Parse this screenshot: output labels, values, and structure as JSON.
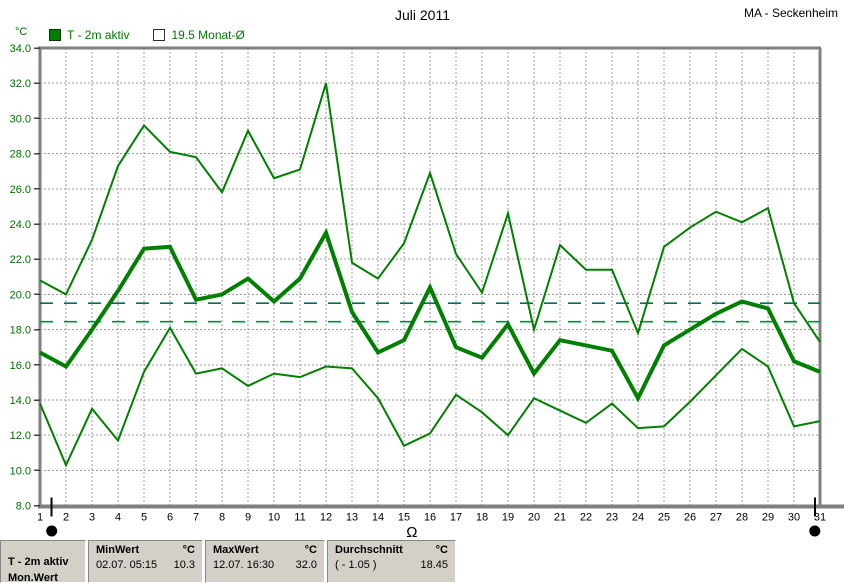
{
  "header": {
    "title": "Juli 2011",
    "station": "MA - Seckenheim"
  },
  "legend": {
    "unit_label": "°C",
    "series1_label": "T - 2m aktiv",
    "series2_label": "19.5 Monat-Ø"
  },
  "colors": {
    "series": "#008000",
    "grid": "#9c9c9c",
    "axis": "#808080",
    "ytick_text": "#007000",
    "xtick_text": "#000000"
  },
  "chart_data": {
    "type": "line",
    "title": "Juli 2011",
    "y_unit": "°C",
    "legend": [
      "T - 2m aktiv",
      "19.5 Monat-Ø"
    ],
    "x": [
      1,
      2,
      3,
      4,
      5,
      6,
      7,
      8,
      9,
      10,
      11,
      12,
      13,
      14,
      15,
      16,
      17,
      18,
      19,
      20,
      21,
      22,
      23,
      24,
      25,
      26,
      27,
      28,
      29,
      30,
      31
    ],
    "ylim": [
      8,
      34
    ],
    "ytick_step": 2,
    "grid": true,
    "series": [
      {
        "name": "daily-max",
        "width": 2,
        "values": [
          20.8,
          20.0,
          23.1,
          27.3,
          29.6,
          28.1,
          27.8,
          25.8,
          29.3,
          26.6,
          27.1,
          32.0,
          21.8,
          20.9,
          22.9,
          26.9,
          22.3,
          20.1,
          24.6,
          18.0,
          22.8,
          21.4,
          21.4,
          17.8,
          22.7,
          23.8,
          24.7,
          24.1,
          24.9,
          19.5,
          17.3
        ]
      },
      {
        "name": "daily-mean",
        "width": 4,
        "values": [
          16.7,
          15.9,
          18.0,
          20.2,
          22.6,
          22.7,
          19.7,
          20.0,
          20.9,
          19.6,
          20.9,
          23.5,
          19.0,
          16.7,
          17.4,
          20.4,
          17.0,
          16.4,
          18.3,
          15.5,
          17.4,
          17.1,
          16.8,
          14.1,
          17.1,
          18.0,
          18.9,
          19.6,
          19.2,
          16.2,
          15.6
        ]
      },
      {
        "name": "daily-min",
        "width": 2,
        "values": [
          13.8,
          10.3,
          13.5,
          11.7,
          15.6,
          18.1,
          15.5,
          15.8,
          14.8,
          15.5,
          15.3,
          15.9,
          15.8,
          14.1,
          11.4,
          12.1,
          14.3,
          13.3,
          12.0,
          14.1,
          13.4,
          12.7,
          13.8,
          12.4,
          12.5,
          13.9,
          15.4,
          16.9,
          15.9,
          12.5,
          12.8
        ]
      }
    ],
    "reference_lines": [
      {
        "label": "19.5 Monat-Ø",
        "value": 19.5,
        "color": "#00705a"
      },
      {
        "label": "Durchschnitt",
        "value": 18.45,
        "color": "#008f3d"
      }
    ],
    "moon_markers": [
      {
        "day": 1.45,
        "phase": "new"
      },
      {
        "day": 15.3,
        "phase": "full"
      },
      {
        "day": 30.8,
        "phase": "new"
      }
    ]
  },
  "status_table": {
    "row_label": "T - 2m aktiv",
    "row2_label_clipped": "Mon.Wert",
    "columns": [
      {
        "header": "MinWert",
        "unit": "°C",
        "value": "02.07.  05:15",
        "reading": "10.3"
      },
      {
        "header": "MaxWert",
        "unit": "°C",
        "value": "12.07.  16:30",
        "reading": "32.0"
      },
      {
        "header": "Durchschnitt",
        "unit": "°C",
        "value": "( - 1.05 )",
        "reading": "18.45"
      }
    ]
  }
}
